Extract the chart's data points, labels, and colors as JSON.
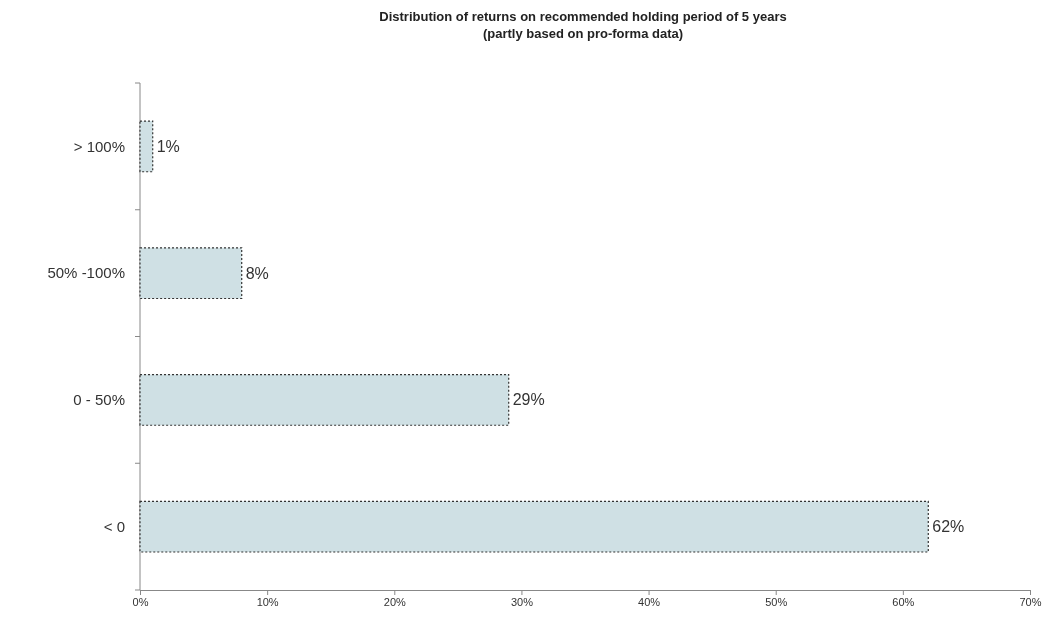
{
  "chart_data": {
    "type": "bar",
    "orientation": "horizontal",
    "title": "Distribution of returns on recommended holding period of 5 years",
    "subtitle": "(partly based on pro-forma data)",
    "categories": [
      "> 100%",
      "50% -100%",
      "0 - 50%",
      "< 0"
    ],
    "values": [
      1,
      8,
      29,
      62
    ],
    "value_labels": [
      "1%",
      "8%",
      "29%",
      "62%"
    ],
    "color": "#cfe0e4",
    "xlim": [
      0,
      70
    ],
    "xticks": [
      {
        "value": 0,
        "label": "0%"
      },
      {
        "value": 10,
        "label": "10%"
      },
      {
        "value": 20,
        "label": "20%"
      },
      {
        "value": 30,
        "label": "30%"
      },
      {
        "value": 40,
        "label": "40%"
      },
      {
        "value": 50,
        "label": "50%"
      },
      {
        "value": 60,
        "label": "60%"
      },
      {
        "value": 70,
        "label": "70%"
      }
    ],
    "grid": false
  }
}
